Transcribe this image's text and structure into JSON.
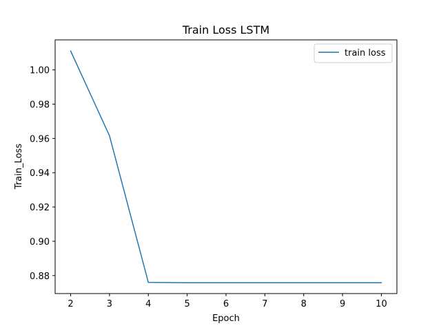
{
  "chart_data": {
    "type": "line",
    "title": "Train Loss LSTM",
    "xlabel": "Epoch",
    "ylabel": "Train_Loss",
    "xlim": [
      1.6,
      10.4
    ],
    "ylim": [
      0.8695,
      1.0175
    ],
    "xticks": [
      2,
      3,
      4,
      5,
      6,
      7,
      8,
      9,
      10
    ],
    "yticks": [
      0.88,
      0.9,
      0.92,
      0.94,
      0.96,
      0.98,
      1.0
    ],
    "ytick_labels": [
      "0.88",
      "0.90",
      "0.92",
      "0.94",
      "0.96",
      "0.98",
      "1.00"
    ],
    "grid": false,
    "legend_position": "top-right",
    "series": [
      {
        "name": "train loss",
        "color": "#1f77b4",
        "x": [
          2,
          3,
          4,
          5,
          6,
          7,
          8,
          9,
          10
        ],
        "y": [
          1.011,
          0.9615,
          0.876,
          0.8758,
          0.8758,
          0.8758,
          0.8758,
          0.8758,
          0.8758
        ]
      }
    ]
  }
}
